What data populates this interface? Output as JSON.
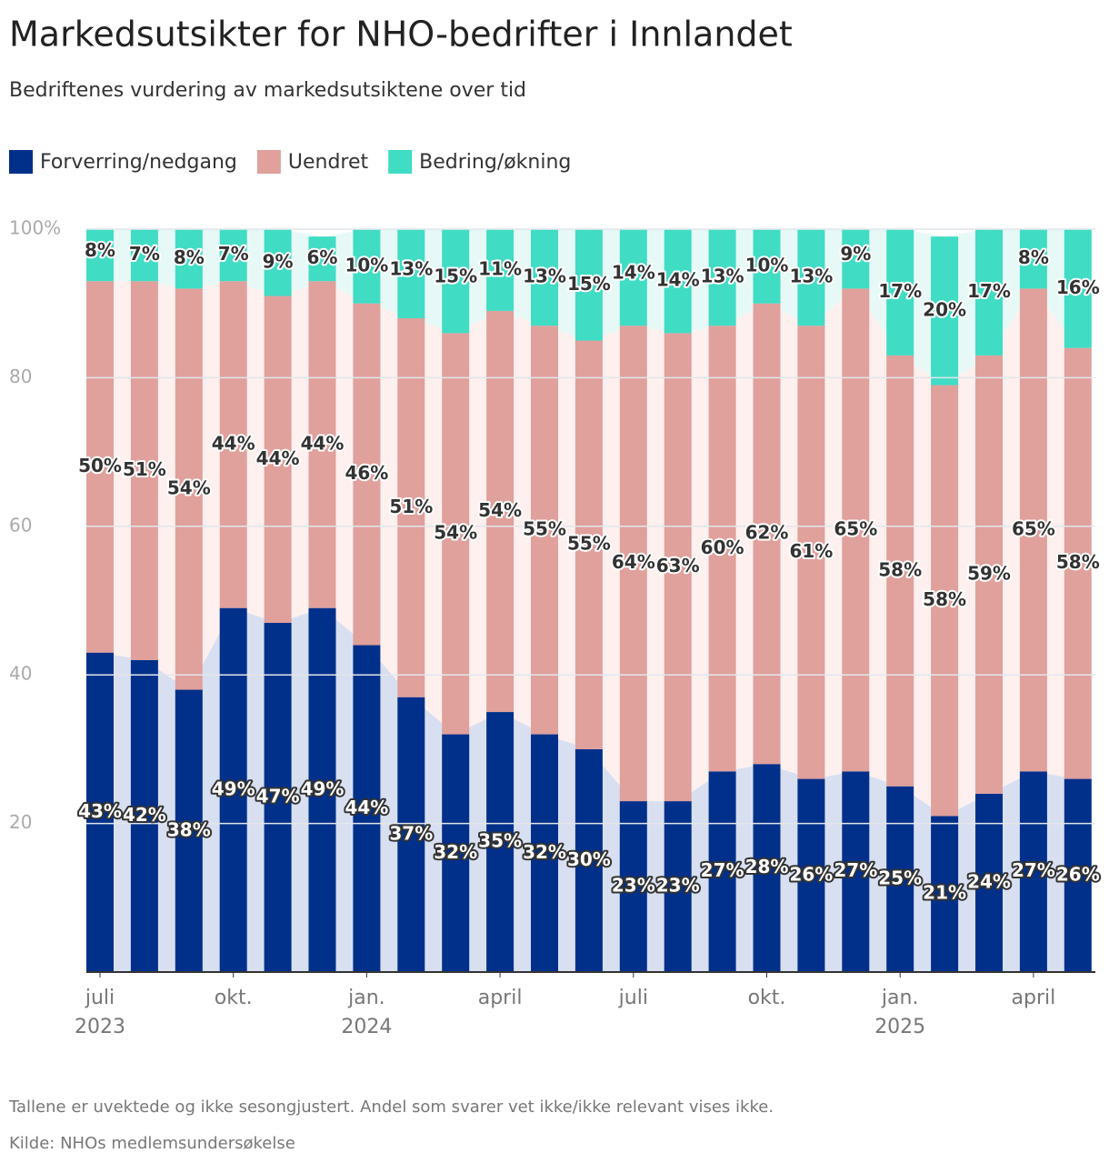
{
  "chart_data": {
    "type": "stacked-bar",
    "title": "Markedsutsikter for NHO-bedrifter i Innlandet",
    "subtitle": "Bedriftenes vurdering av markedsutsiktene over tid",
    "x": [
      "2023-07",
      "2023-08",
      "2023-09",
      "2023-10",
      "2023-11",
      "2023-12",
      "2024-01",
      "2024-02",
      "2024-03",
      "2024-04",
      "2024-05",
      "2024-06",
      "2024-07",
      "2024-08",
      "2024-09",
      "2024-10",
      "2024-11",
      "2024-12",
      "2025-01",
      "2025-02",
      "2025-03",
      "2025-04",
      "2025-05"
    ],
    "series": [
      {
        "name": "Forverring/nedgang",
        "color": "#00308a",
        "area_color": "#d8dff0",
        "values": [
          43,
          42,
          38,
          49,
          47,
          49,
          44,
          37,
          32,
          35,
          32,
          30,
          23,
          23,
          27,
          28,
          26,
          27,
          25,
          21,
          24,
          27,
          26
        ],
        "value_labels": [
          "43%",
          "42%",
          "38%",
          "49%",
          "47%",
          "49%",
          "44%",
          "37%",
          "32%",
          "35%",
          "32%",
          "30%",
          "23%",
          "23%",
          "27%",
          "28%",
          "26%",
          "27%",
          "25%",
          "21%",
          "24%",
          "27%",
          "26%"
        ]
      },
      {
        "name": "Uendret",
        "color": "#e0a09c",
        "area_color": "#fdf0ef",
        "values": [
          50,
          51,
          54,
          44,
          44,
          44,
          46,
          51,
          54,
          54,
          55,
          55,
          64,
          63,
          60,
          62,
          61,
          65,
          58,
          58,
          59,
          65,
          58
        ],
        "value_labels": [
          "50%",
          "51%",
          "54%",
          "44%",
          "44%",
          "44%",
          "46%",
          "51%",
          "54%",
          "54%",
          "55%",
          "55%",
          "64%",
          "63%",
          "60%",
          "62%",
          "61%",
          "65%",
          "58%",
          "58%",
          "59%",
          "65%",
          "58%"
        ]
      },
      {
        "name": "Bedring/økning",
        "color": "#40dcc4",
        "area_color": "#e6f9f6",
        "values": [
          8,
          7,
          8,
          7,
          9,
          6,
          10,
          13,
          15,
          11,
          13,
          15,
          14,
          14,
          13,
          10,
          13,
          9,
          17,
          20,
          17,
          8,
          16
        ],
        "value_labels": [
          "8%",
          "7%",
          "8%",
          "7%",
          "9%",
          "6%",
          "10%",
          "13%",
          "15%",
          "11%",
          "13%",
          "15%",
          "14%",
          "14%",
          "13%",
          "10%",
          "13%",
          "9%",
          "17%",
          "20%",
          "17%",
          "8%",
          "16%"
        ]
      }
    ],
    "ylim": [
      0,
      100
    ],
    "yticks": [
      20,
      40,
      60,
      80,
      {
        "value": 100,
        "label": "100%"
      }
    ],
    "xticks": [
      {
        "value": "2023-07",
        "label": "juli",
        "year": "2023"
      },
      {
        "value": "2023-10",
        "label": "okt."
      },
      {
        "value": "2024-01",
        "label": "jan.",
        "year": "2024"
      },
      {
        "value": "2024-04",
        "label": "april"
      },
      {
        "value": "2024-07",
        "label": "juli"
      },
      {
        "value": "2024-10",
        "label": "okt."
      },
      {
        "value": "2025-01",
        "label": "jan.",
        "year": "2025"
      },
      {
        "value": "2025-04",
        "label": "april"
      }
    ],
    "grid": true,
    "legend": "top-left",
    "notes": [
      "Tallene er uvektede og ikke sesongjustert. Andel som svarer vet ikke/ikke relevant vises ikke.",
      "Kilde: NHOs medlemsundersøkelse"
    ]
  }
}
